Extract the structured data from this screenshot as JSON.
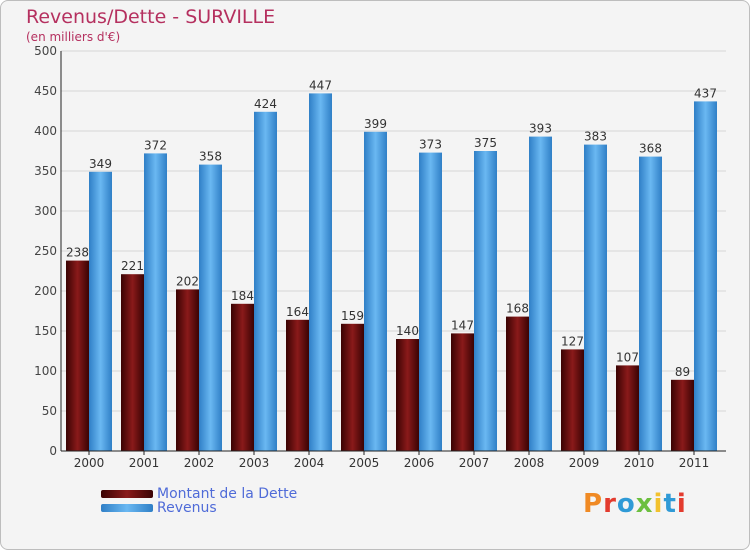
{
  "header": {
    "title": "Revenus/Dette - SURVILLE",
    "subtitle": "(en milliers d'€)"
  },
  "logo": {
    "letters": [
      "P",
      "r",
      "o",
      "x",
      "i",
      "t",
      "i"
    ],
    "colors": [
      "#f08a24",
      "#e33b2e",
      "#2f9ad6",
      "#6cbf3f",
      "#f2c12e",
      "#2f9ad6",
      "#e33b2e"
    ]
  },
  "chart_data": {
    "type": "bar",
    "categories": [
      "2000",
      "2001",
      "2002",
      "2003",
      "2004",
      "2005",
      "2006",
      "2007",
      "2008",
      "2009",
      "2010",
      "2011"
    ],
    "series": [
      {
        "name": "Montant de la Dette",
        "color": "#7b1313",
        "values": [
          238,
          221,
          202,
          184,
          164,
          159,
          140,
          147,
          168,
          127,
          107,
          89
        ]
      },
      {
        "name": "Revenus",
        "color": "#4aa2e8",
        "values": [
          349,
          372,
          358,
          424,
          447,
          399,
          373,
          375,
          393,
          383,
          368,
          437
        ]
      }
    ],
    "ylim": [
      0,
      500
    ],
    "yticks": [
      0,
      50,
      100,
      150,
      200,
      250,
      300,
      350,
      400,
      450,
      500
    ],
    "grid": true,
    "legend": "bottom-left"
  }
}
